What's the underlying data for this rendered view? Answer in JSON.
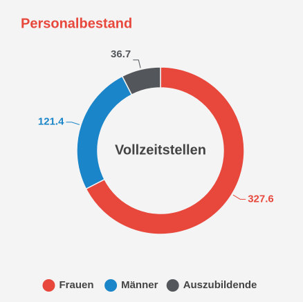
{
  "chart_data": {
    "type": "donut",
    "title": "Personalbestand",
    "center_label": "Vollzeitstellen",
    "categories": [
      "Frauen",
      "Männer",
      "Auszubildende"
    ],
    "values": [
      327.6,
      121.4,
      36.7
    ],
    "colors": [
      "#e8473c",
      "#1a85c8",
      "#53575b"
    ],
    "legend": "bottom"
  }
}
